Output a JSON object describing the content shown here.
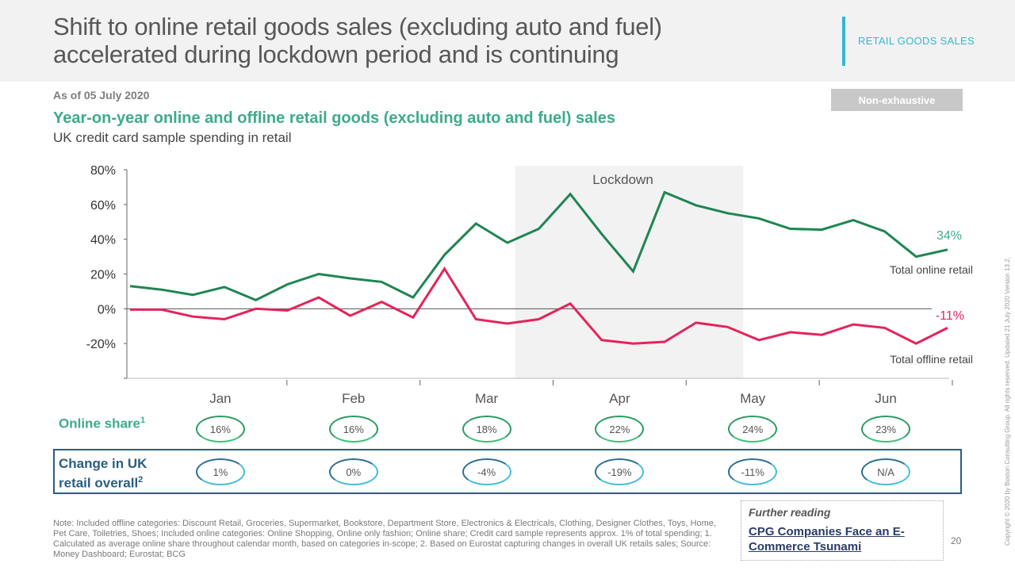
{
  "header": {
    "title": "Shift to online retail goods sales (excluding auto and fuel) accelerated during lockdown period and is continuing",
    "section_tag": "RETAIL GOODS SALES"
  },
  "as_of": "As of 05 July 2020",
  "badge": "Non-exhaustive",
  "subtitle": "Year-on-year online and offline retail goods (excluding auto and fuel) sales",
  "sub_subtitle": "UK credit card sample spending in retail",
  "colors": {
    "online": "#1e8554",
    "offline": "#e3245a",
    "online_label": "#3eab8a",
    "change_border": "#295e7e",
    "lockdown_band": "#f2f2f2"
  },
  "chart_data": {
    "type": "line",
    "title": "Year-on-year online and offline retail goods (excluding auto and fuel) sales",
    "xlabel": "",
    "ylabel": "",
    "ylim": [
      -40,
      80
    ],
    "yticks": [
      80,
      60,
      40,
      20,
      0,
      -20,
      -40
    ],
    "ytick_labels": [
      "80%",
      "60%",
      "40%",
      "20%",
      "0%",
      "-20%",
      ""
    ],
    "x_points": 27,
    "x_unit": "week (Jan–Jun 2020)",
    "months": [
      "Jan",
      "Feb",
      "Mar",
      "Apr",
      "May",
      "Jun"
    ],
    "grid": false,
    "annotation": {
      "label": "Lockdown",
      "start_index": 12.25,
      "end_index": 19.5
    },
    "series": [
      {
        "name": "Total online retail",
        "end_label": "34%",
        "values": [
          13,
          11,
          8,
          12.5,
          5,
          14,
          20,
          17.5,
          15.5,
          6.5,
          31,
          49,
          38,
          46,
          66,
          43,
          21.5,
          67,
          59.5,
          55,
          52,
          46,
          45.5,
          51,
          44.5,
          30,
          34
        ]
      },
      {
        "name": "Total offline retail",
        "end_label": "-11%",
        "values": [
          -0.5,
          -0.5,
          -4.5,
          -6,
          0,
          -1,
          6.5,
          -4,
          4,
          -5,
          23,
          -6,
          -8.5,
          -6,
          3,
          -18,
          -20,
          -19,
          -8,
          -10.5,
          -18,
          -13.5,
          -15,
          -9,
          -11,
          -20,
          -11
        ]
      }
    ]
  },
  "table": {
    "online_share_label": "Online share",
    "online_share_sup": "1",
    "change_label_line1": "Change in UK",
    "change_label_line2": "retail overall",
    "change_sup": "2",
    "online_share": [
      "16%",
      "16%",
      "18%",
      "22%",
      "24%",
      "23%"
    ],
    "change_uk_retail": [
      "1%",
      "0%",
      "-4%",
      "-19%",
      "-11%",
      "N/A"
    ]
  },
  "note": "Note: Included offline categories: Discount Retail, Groceries, Supermarket, Bookstore, Department Store, Electronics & Electricals, Clothing, Designer Clothes, Toys, Home, Pet Care, Toiletries, Shoes; Included online categories: Online Shopping, Online only fashion; Online share; Credit card sample represents approx. 1% of total spending;  1. Calculated as average online share throughout calendar month, based on categories in-scope;  2. Based on Eurostat capturing changes in overall UK retails sales; Source: Money Dashboard; Eurostat; BCG",
  "further_reading": {
    "label": "Further reading",
    "link": "CPG Companies Face an E-Commerce Tsunami"
  },
  "page_number": "20",
  "copyright": "Copyright © 2020 by Boston Consulting Group. All rights reserved. Updated 21 July 2020 Version 13.2."
}
